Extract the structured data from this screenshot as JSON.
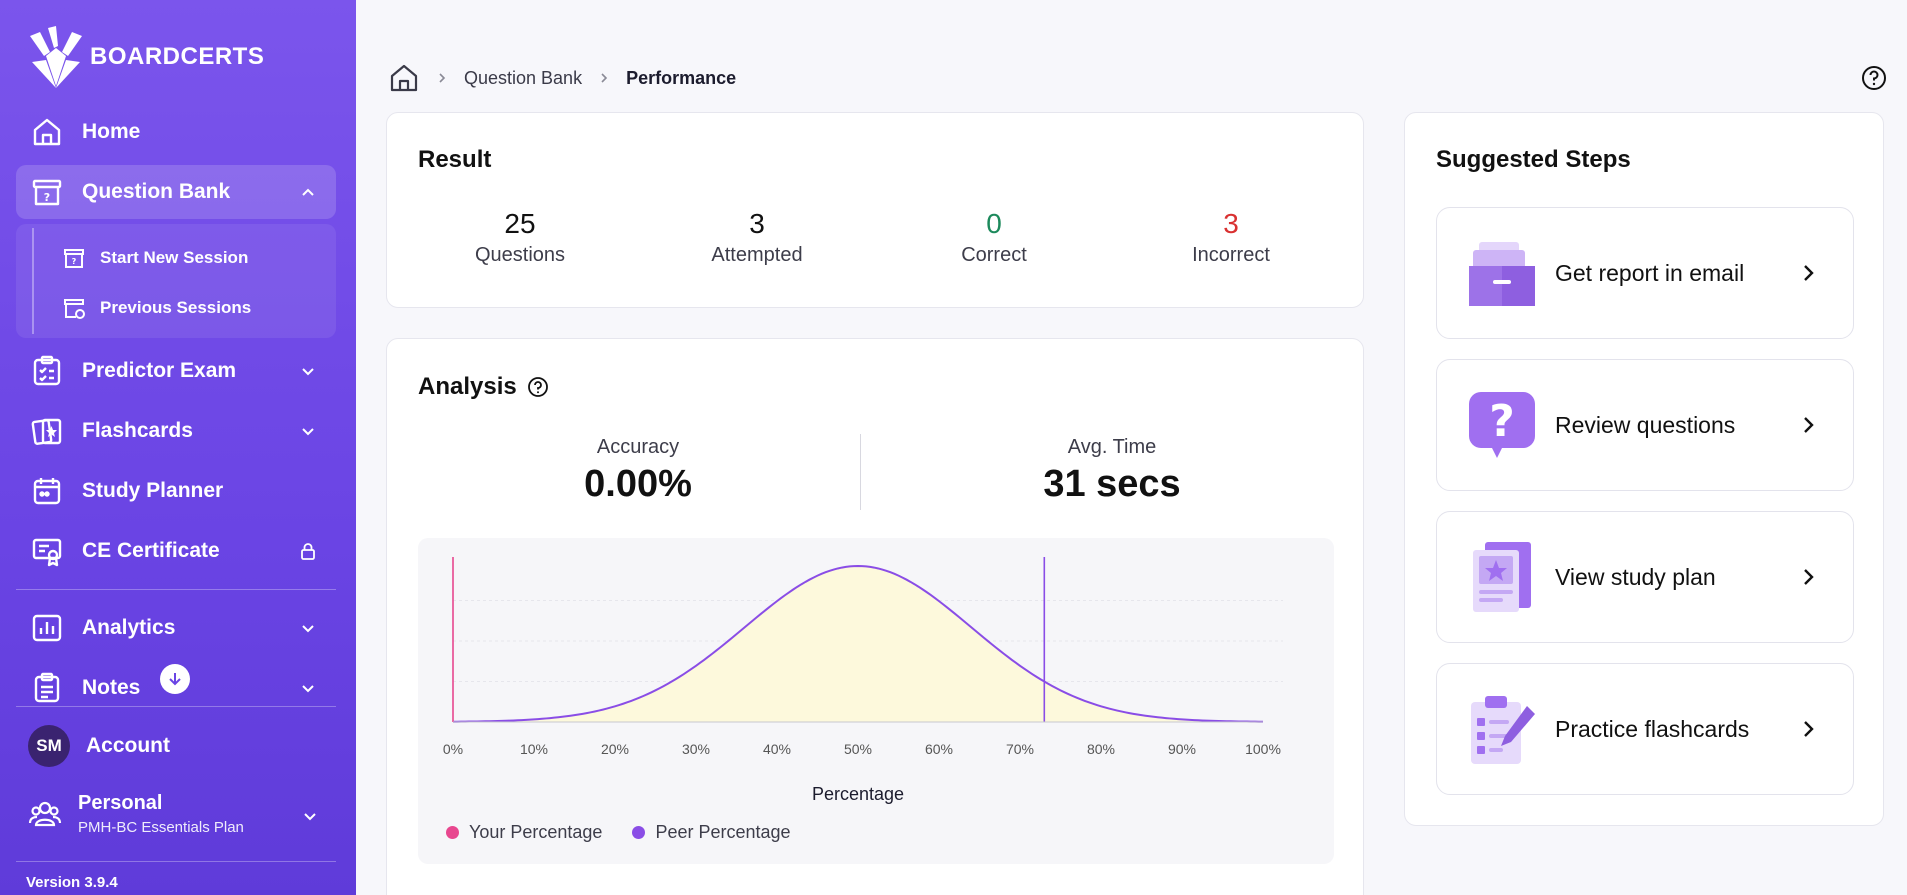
{
  "app": {
    "brand": "BOARDCERTS",
    "version": "Version 3.9.4"
  },
  "sidebar": {
    "items": [
      {
        "label": "Home"
      },
      {
        "label": "Question Bank"
      },
      {
        "label": "Predictor Exam"
      },
      {
        "label": "Flashcards"
      },
      {
        "label": "Study Planner"
      },
      {
        "label": "CE Certificate"
      },
      {
        "label": "Analytics"
      },
      {
        "label": "Notes"
      }
    ],
    "submenu": [
      {
        "label": "Start New Session"
      },
      {
        "label": "Previous Sessions"
      }
    ],
    "account": {
      "initials": "SM",
      "label": "Account"
    },
    "plan": {
      "name": "Personal",
      "subtitle": "PMH-BC Essentials Plan"
    }
  },
  "breadcrumb": {
    "parent": "Question Bank",
    "current": "Performance"
  },
  "result": {
    "title": "Result",
    "stats": [
      {
        "value": "25",
        "label": "Questions"
      },
      {
        "value": "3",
        "label": "Attempted"
      },
      {
        "value": "0",
        "label": "Correct"
      },
      {
        "value": "3",
        "label": "Incorrect"
      }
    ]
  },
  "analysis": {
    "title": "Analysis",
    "accuracy_label": "Accuracy",
    "accuracy_value": "0.00%",
    "time_label": "Avg. Time",
    "time_value": "31 secs"
  },
  "chart_data": {
    "type": "area",
    "xlabel": "Percentage",
    "x_ticks": [
      "0%",
      "10%",
      "20%",
      "30%",
      "40%",
      "50%",
      "60%",
      "70%",
      "80%",
      "90%",
      "100%"
    ],
    "xlim": [
      0,
      100
    ],
    "distribution": {
      "mean": 50,
      "std": 14
    },
    "markers": [
      {
        "name": "Your Percentage",
        "x": 0,
        "color": "#e8478f"
      },
      {
        "name": "Peer Percentage",
        "x": 73,
        "color": "#8a4de6"
      }
    ],
    "grid": true,
    "legend": "bottom-left"
  },
  "suggested": {
    "title": "Suggested Steps",
    "steps": [
      {
        "label": "Get report in email",
        "icon": "archive-box-icon"
      },
      {
        "label": "Review questions",
        "icon": "question-bubble-icon"
      },
      {
        "label": "View study plan",
        "icon": "study-plan-icon"
      },
      {
        "label": "Practice flashcards",
        "icon": "checklist-pencil-icon"
      }
    ]
  },
  "colors": {
    "sidebar": "#6a44e4",
    "accent": "#8a4de6",
    "your": "#e8478f",
    "correct": "#1d8a5c",
    "incorrect": "#d93131"
  }
}
